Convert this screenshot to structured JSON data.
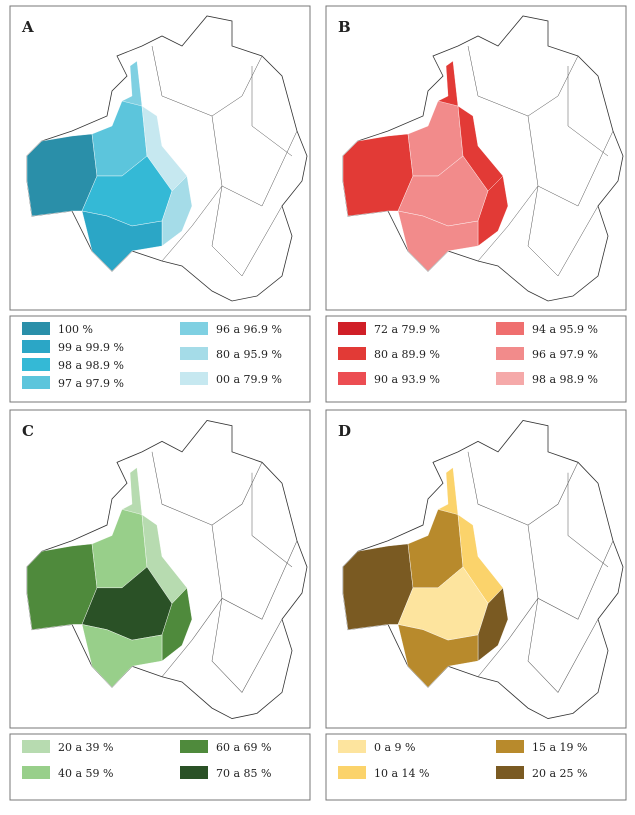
{
  "panels": [
    {
      "label": "A",
      "legend": [
        {
          "text": "100 %",
          "color": "#2a8fa9"
        },
        {
          "text": "99 a 99.9 %",
          "color": "#2ba6c6"
        },
        {
          "text": "98 a 98.9 %",
          "color": "#34b9d6"
        },
        {
          "text": "97 a 97.9 %",
          "color": "#5cc5dc"
        },
        {
          "text": "96 a 96.9 %",
          "color": "#7fd0e2"
        },
        {
          "text": "80 a 95.9 %",
          "color": "#a5dce8"
        },
        {
          "text": "00 a 79.9 %",
          "color": "#c6e8f0"
        }
      ]
    },
    {
      "label": "B",
      "legend": [
        {
          "text": "72 a 79.9 %",
          "color": "#d01f27"
        },
        {
          "text": "80 a 89.9 %",
          "color": "#e23a36"
        },
        {
          "text": "90 a 93.9 %",
          "color": "#ec4d52"
        },
        {
          "text": "94 a 95.9 %",
          "color": "#ef6f6f"
        },
        {
          "text": "96 a 97.9 %",
          "color": "#f28b8b"
        },
        {
          "text": "98 a 98.9 %",
          "color": "#f5a9a9"
        }
      ]
    },
    {
      "label": "C",
      "legend": [
        {
          "text": "20 a 39 %",
          "color": "#b7dbb0"
        },
        {
          "text": "40 a 59 %",
          "color": "#98cf8a"
        },
        {
          "text": "60 a 69 %",
          "color": "#4f8a3c"
        },
        {
          "text": "70 a 85 %",
          "color": "#2a5126"
        }
      ]
    },
    {
      "label": "D",
      "legend": [
        {
          "text": "0 a 9 %",
          "color": "#fde49e"
        },
        {
          "text": "10 a 14 %",
          "color": "#fbd36b"
        },
        {
          "text": "15 a 19 %",
          "color": "#b88a2c"
        },
        {
          "text": "20 a 25 %",
          "color": "#7a5a22"
        }
      ]
    }
  ]
}
